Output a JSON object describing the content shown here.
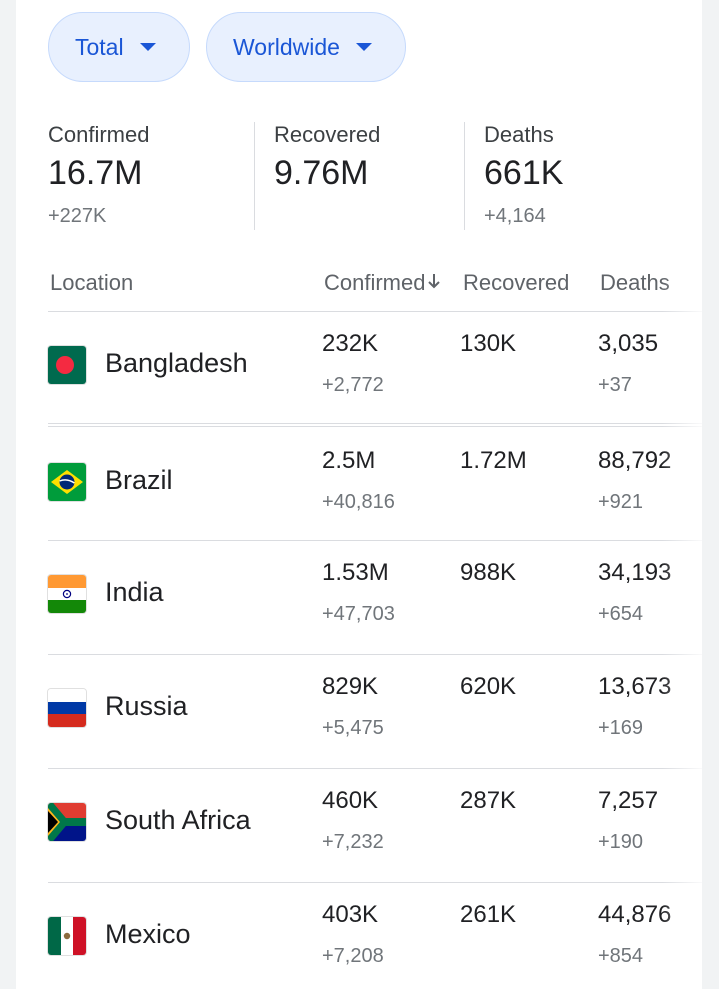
{
  "filters": {
    "type_label": "Total",
    "region_label": "Worldwide"
  },
  "summary": {
    "confirmed": {
      "label": "Confirmed",
      "value": "16.7M",
      "delta": "+227K"
    },
    "recovered": {
      "label": "Recovered",
      "value": "9.76M"
    },
    "deaths": {
      "label": "Deaths",
      "value": "661K",
      "delta": "+4,164"
    }
  },
  "table": {
    "headers": {
      "location": "Location",
      "confirmed": "Confirmed",
      "recovered": "Recovered",
      "deaths": "Deaths"
    },
    "sort_icon": "arrow-down-icon",
    "rows": [
      {
        "country": "Bangladesh",
        "flag": "bangladesh-flag-icon",
        "confirmed": "232K",
        "confirmed_delta": "+2,772",
        "recovered": "130K",
        "deaths": "3,035",
        "deaths_delta": "+37"
      },
      {
        "country": "Brazil",
        "flag": "brazil-flag-icon",
        "confirmed": "2.5M",
        "confirmed_delta": "+40,816",
        "recovered": "1.72M",
        "deaths": "88,792",
        "deaths_delta": "+921"
      },
      {
        "country": "India",
        "flag": "india-flag-icon",
        "confirmed": "1.53M",
        "confirmed_delta": "+47,703",
        "recovered": "988K",
        "deaths": "34,193",
        "deaths_delta": "+654"
      },
      {
        "country": "Russia",
        "flag": "russia-flag-icon",
        "confirmed": "829K",
        "confirmed_delta": "+5,475",
        "recovered": "620K",
        "deaths": "13,673",
        "deaths_delta": "+169"
      },
      {
        "country": "South Africa",
        "flag": "south-africa-flag-icon",
        "confirmed": "460K",
        "confirmed_delta": "+7,232",
        "recovered": "287K",
        "deaths": "7,257",
        "deaths_delta": "+190"
      },
      {
        "country": "Mexico",
        "flag": "mexico-flag-icon",
        "confirmed": "403K",
        "confirmed_delta": "+7,208",
        "recovered": "261K",
        "deaths": "44,876",
        "deaths_delta": "+854"
      }
    ]
  },
  "colors": {
    "chip_bg": "#e8f0fe",
    "chip_text": "#1a56d6",
    "divider": "#dadce0"
  }
}
